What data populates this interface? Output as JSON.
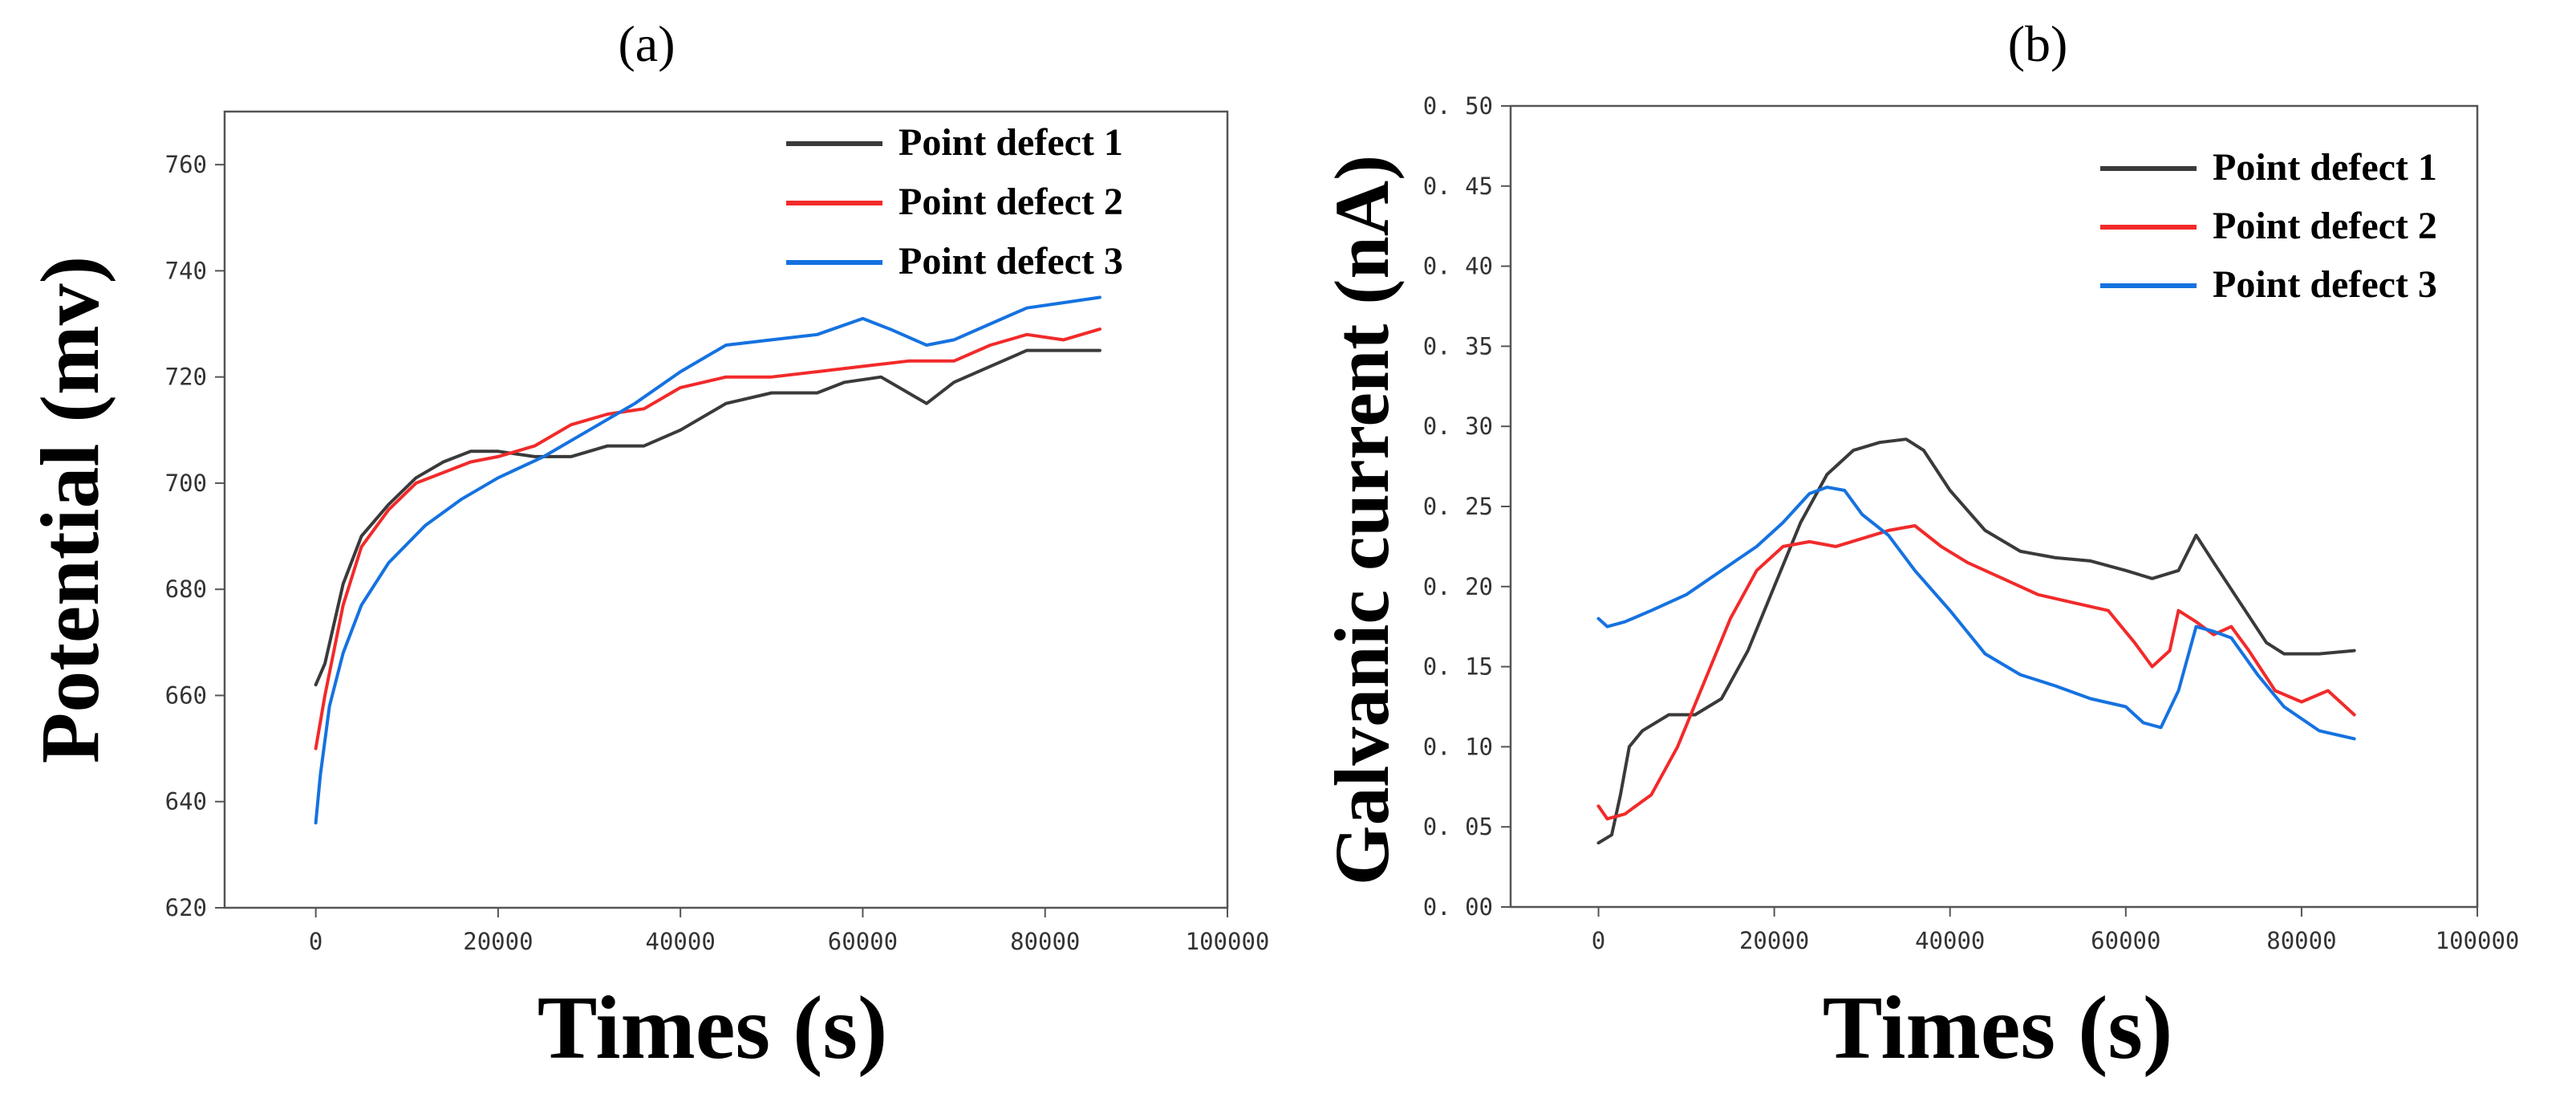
{
  "chart_data": [
    {
      "panel_label": "(a)",
      "type": "line",
      "title": "",
      "xlabel": "Times (s)",
      "ylabel": "Potential (mv)",
      "xlim": [
        -10000,
        100000
      ],
      "ylim": [
        620,
        770
      ],
      "xticks": [
        0,
        20000,
        40000,
        60000,
        80000,
        100000
      ],
      "yticks": [
        620,
        640,
        660,
        680,
        700,
        720,
        740,
        760
      ],
      "xtick_labels": [
        "0",
        "20000",
        "40000",
        "60000",
        "80000",
        "100000"
      ],
      "ytick_labels": [
        "620",
        "640",
        "660",
        "680",
        "700",
        "720",
        "740",
        "760"
      ],
      "grid": false,
      "legend_position": "top-right",
      "series": [
        {
          "name": "Point defect 1",
          "color": "#3a3a3a",
          "x": [
            0,
            1000,
            3000,
            5000,
            8000,
            11000,
            14000,
            17000,
            20000,
            24000,
            28000,
            32000,
            36000,
            40000,
            45000,
            50000,
            55000,
            58000,
            62000,
            65000,
            67000,
            70000,
            74000,
            78000,
            82000,
            86000
          ],
          "y": [
            662,
            666,
            681,
            690,
            696,
            701,
            704,
            706,
            706,
            705,
            705,
            707,
            707,
            710,
            715,
            717,
            717,
            719,
            720,
            717,
            715,
            719,
            722,
            725,
            725,
            725
          ]
        },
        {
          "name": "Point defect 2",
          "color": "#f22a2a",
          "x": [
            0,
            1000,
            3000,
            5000,
            8000,
            11000,
            14000,
            17000,
            20000,
            24000,
            28000,
            32000,
            36000,
            40000,
            45000,
            50000,
            55000,
            60000,
            65000,
            70000,
            74000,
            78000,
            82000,
            86000
          ],
          "y": [
            650,
            660,
            677,
            688,
            695,
            700,
            702,
            704,
            705,
            707,
            711,
            713,
            714,
            718,
            720,
            720,
            721,
            722,
            723,
            723,
            726,
            728,
            727,
            729
          ]
        },
        {
          "name": "Point defect 3",
          "color": "#1572e0",
          "x": [
            0,
            500,
            1500,
            3000,
            5000,
            8000,
            12000,
            16000,
            20000,
            25000,
            30000,
            35000,
            40000,
            45000,
            50000,
            55000,
            60000,
            63000,
            67000,
            70000,
            74000,
            78000,
            82000,
            86000
          ],
          "y": [
            636,
            645,
            658,
            668,
            677,
            685,
            692,
            697,
            701,
            705,
            710,
            715,
            721,
            726,
            727,
            728,
            731,
            729,
            726,
            727,
            730,
            733,
            734,
            735
          ]
        }
      ]
    },
    {
      "panel_label": "(b)",
      "type": "line",
      "title": "",
      "xlabel": "Times (s)",
      "ylabel": "Galvanic current (nA)",
      "xlim": [
        -10000,
        100000
      ],
      "ylim": [
        0,
        0.5
      ],
      "xticks": [
        0,
        20000,
        40000,
        60000,
        80000,
        100000
      ],
      "yticks": [
        0,
        0.05,
        0.1,
        0.15,
        0.2,
        0.25,
        0.3,
        0.35,
        0.4,
        0.45,
        0.5
      ],
      "xtick_labels": [
        "0",
        "20000",
        "40000",
        "60000",
        "80000",
        "100000"
      ],
      "ytick_labels": [
        "0. 00",
        "0. 05",
        "0. 10",
        "0. 15",
        "0. 20",
        "0. 25",
        "0. 30",
        "0. 35",
        "0. 40",
        "0. 45",
        "0. 50"
      ],
      "grid": false,
      "legend_position": "top-right",
      "series": [
        {
          "name": "Point defect 1",
          "color": "#3a3a3a",
          "x": [
            0,
            1500,
            2500,
            3500,
            5000,
            8000,
            11000,
            14000,
            17000,
            20000,
            23000,
            26000,
            29000,
            32000,
            35000,
            37000,
            40000,
            44000,
            48000,
            52000,
            56000,
            60000,
            63000,
            66000,
            68000,
            70000,
            73000,
            76000,
            78000,
            82000,
            86000
          ],
          "y": [
            0.04,
            0.045,
            0.07,
            0.1,
            0.11,
            0.12,
            0.12,
            0.13,
            0.16,
            0.2,
            0.24,
            0.27,
            0.285,
            0.29,
            0.292,
            0.285,
            0.26,
            0.235,
            0.222,
            0.218,
            0.216,
            0.21,
            0.205,
            0.21,
            0.232,
            0.215,
            0.19,
            0.165,
            0.158,
            0.158,
            0.16
          ]
        },
        {
          "name": "Point defect 2",
          "color": "#f22a2a",
          "x": [
            0,
            1000,
            3000,
            6000,
            9000,
            12000,
            15000,
            18000,
            21000,
            24000,
            27000,
            30000,
            33000,
            36000,
            39000,
            42000,
            46000,
            50000,
            54000,
            58000,
            61000,
            63000,
            65000,
            66000,
            68000,
            70000,
            72000,
            74000,
            77000,
            80000,
            83000,
            86000
          ],
          "y": [
            0.063,
            0.055,
            0.058,
            0.07,
            0.1,
            0.14,
            0.18,
            0.21,
            0.225,
            0.228,
            0.225,
            0.23,
            0.235,
            0.238,
            0.225,
            0.215,
            0.205,
            0.195,
            0.19,
            0.185,
            0.165,
            0.15,
            0.16,
            0.185,
            0.178,
            0.17,
            0.175,
            0.16,
            0.135,
            0.128,
            0.135,
            0.12
          ]
        },
        {
          "name": "Point defect 3",
          "color": "#1572e0",
          "x": [
            0,
            1000,
            3000,
            6000,
            10000,
            14000,
            18000,
            21000,
            24000,
            26000,
            28000,
            30000,
            33000,
            36000,
            40000,
            44000,
            48000,
            52000,
            56000,
            60000,
            62000,
            64000,
            66000,
            68000,
            70000,
            72000,
            75000,
            78000,
            82000,
            86000
          ],
          "y": [
            0.18,
            0.175,
            0.178,
            0.185,
            0.195,
            0.21,
            0.225,
            0.24,
            0.258,
            0.262,
            0.26,
            0.245,
            0.232,
            0.21,
            0.185,
            0.158,
            0.145,
            0.138,
            0.13,
            0.125,
            0.115,
            0.112,
            0.135,
            0.175,
            0.172,
            0.168,
            0.145,
            0.125,
            0.11,
            0.105
          ]
        }
      ]
    }
  ]
}
